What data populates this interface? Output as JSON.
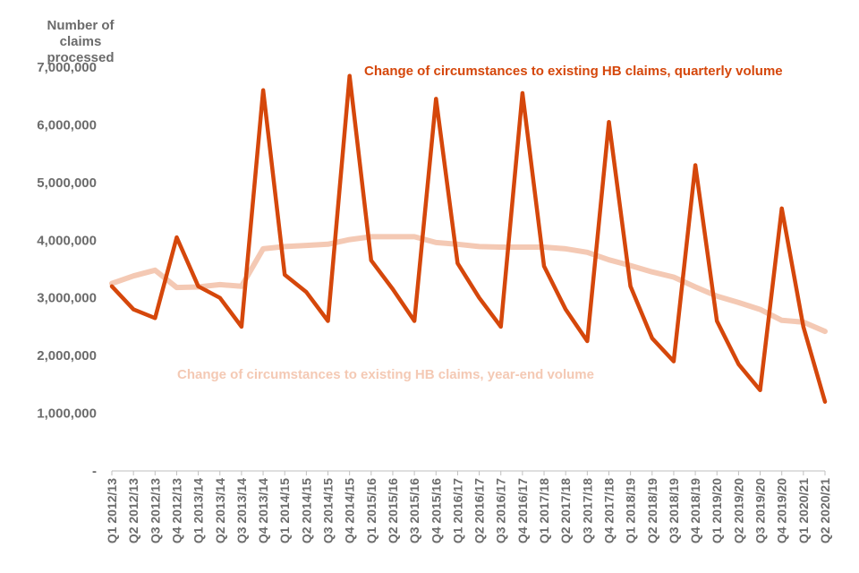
{
  "chart_data": {
    "type": "line",
    "ylabel": "Number of claims processed",
    "ylim": [
      0,
      7000000
    ],
    "yticks": [
      {
        "value": 0,
        "label": "-"
      },
      {
        "value": 1000000,
        "label": "1,000,000"
      },
      {
        "value": 2000000,
        "label": "2,000,000"
      },
      {
        "value": 3000000,
        "label": "3,000,000"
      },
      {
        "value": 4000000,
        "label": "4,000,000"
      },
      {
        "value": 5000000,
        "label": "5,000,000"
      },
      {
        "value": 6000000,
        "label": "6,000,000"
      },
      {
        "value": 7000000,
        "label": "7,000,000"
      }
    ],
    "categories": [
      "Q1 2012/13",
      "Q2 2012/13",
      "Q3 2012/13",
      "Q4 2012/13",
      "Q1 2013/14",
      "Q2 2013/14",
      "Q3 2013/14",
      "Q4 2013/14",
      "Q1 2014/15",
      "Q2 2014/15",
      "Q3 2014/15",
      "Q4 2014/15",
      "Q1 2015/16",
      "Q2 2015/16",
      "Q3 2015/16",
      "Q4 2015/16",
      "Q1 2016/17",
      "Q2 2016/17",
      "Q3 2016/17",
      "Q4 2016/17",
      "Q1 2017/18",
      "Q2 2017/18",
      "Q3 2017/18",
      "Q4 2017/18",
      "Q1 2018/19",
      "Q2 2018/19",
      "Q3 2018/19",
      "Q4 2018/19",
      "Q1 2019/20",
      "Q2 2019/20",
      "Q3 2019/20",
      "Q4 2019/20",
      "Q1 2020/21",
      "Q2 2020/21"
    ],
    "series": [
      {
        "name": "Change of circumstances to existing HB claims, quarterly volume",
        "color": "#d5470b",
        "values": [
          3200000,
          2800000,
          2650000,
          4050000,
          3200000,
          3000000,
          2500000,
          6600000,
          3400000,
          3100000,
          2600000,
          6850000,
          3650000,
          3150000,
          2600000,
          6450000,
          3600000,
          3000000,
          2500000,
          6550000,
          3550000,
          2800000,
          2250000,
          6050000,
          3200000,
          2300000,
          1900000,
          5300000,
          2600000,
          1850000,
          1400000,
          4550000,
          2500000,
          1200000
        ]
      },
      {
        "name": "Change of circumstances to existing HB claims, year-end volume",
        "color": "#f4c9b4",
        "values": [
          3250000,
          3380000,
          3480000,
          3180000,
          3190000,
          3230000,
          3200000,
          3850000,
          3890000,
          3910000,
          3930000,
          4010000,
          4060000,
          4060000,
          4060000,
          3960000,
          3930000,
          3890000,
          3880000,
          3880000,
          3880000,
          3850000,
          3790000,
          3660000,
          3560000,
          3450000,
          3360000,
          3190000,
          3030000,
          2920000,
          2800000,
          2610000,
          2580000,
          2420000
        ]
      }
    ],
    "annotations": [
      {
        "text": "Change of circumstances to existing HB claims, quarterly volume",
        "color": "#d5470b"
      },
      {
        "text": "Change of circumstances to existing HB claims, year-end volume",
        "color": "#f4c9b4"
      }
    ],
    "legend": "inline labels",
    "grid": false
  }
}
